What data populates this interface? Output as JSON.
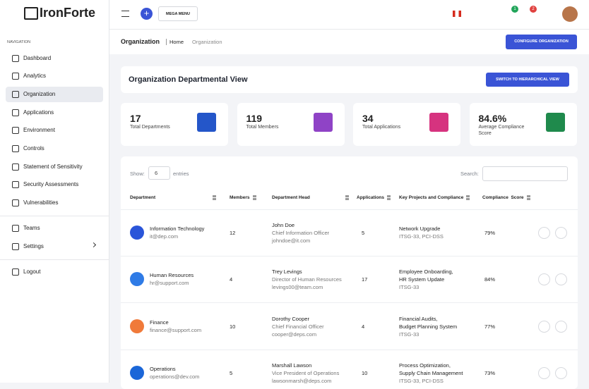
{
  "brand": "IronForte",
  "topbar": {
    "mega_menu": "MEGA MENU",
    "badges": [
      "1",
      "2"
    ]
  },
  "sidebar": {
    "section": "NAVIGATION",
    "items": [
      "Dashboard",
      "Analytics",
      "Organization",
      "Applications",
      "Environment",
      "Controls",
      "Statement of Sensitivity",
      "Security Assessments",
      "Vulnerabilities"
    ],
    "secondary": [
      "Teams",
      "Settings"
    ],
    "logout": "Logout"
  },
  "page_header": {
    "title": "Organization",
    "breadcrumb": [
      "Home",
      "Organization"
    ],
    "button": "CONFIGURE ORGANIZATION"
  },
  "view": {
    "title": "Organization Departmental View",
    "button": "SWITCH TO HIERARCHICAL VIEW"
  },
  "stats": [
    {
      "value": "17",
      "label": "Total Departments"
    },
    {
      "value": "119",
      "label": "Total Members"
    },
    {
      "value": "34",
      "label": "Total Applications"
    },
    {
      "value": "84.6%",
      "label": "Average Compliance Score"
    }
  ],
  "table": {
    "show": "Show:",
    "page_size": "6",
    "entries": "entries",
    "search": "Search:",
    "columns": [
      "Department",
      "Members",
      "Department Head",
      "Applications",
      "Key Projects and Compliance",
      "Compliance  Score"
    ],
    "rows": [
      {
        "name": "Information Technology",
        "email": "it@dep.com",
        "members": "12",
        "head": "John Doe",
        "head_title": "Chief Information Officer",
        "head_email": "johndoe@it.com",
        "applications": "5",
        "projects": [
          "Network Upgrade"
        ],
        "compliance": "ITSG-33, PCI-DSS",
        "score": "79%"
      },
      {
        "name": "Human Resources",
        "email": "hr@support.com",
        "members": "4",
        "head": "Trey Levings",
        "head_title": "Director of Human Resources",
        "head_email": "levings00@team.com",
        "applications": "17",
        "projects": [
          "Employee Onboarding,",
          "HR System Update"
        ],
        "compliance": "ITSG-33",
        "score": "84%"
      },
      {
        "name": "Finance",
        "email": "finance@support.com",
        "members": "10",
        "head": "Dorothy Cooper",
        "head_title": "Chief Financial Officer",
        "head_email": "cooper@deps.com",
        "applications": "4",
        "projects": [
          "Financial Audits,",
          "Budget Planning System"
        ],
        "compliance": "ITSG-33",
        "score": "77%"
      },
      {
        "name": "Operations",
        "email": "operations@dev.com",
        "members": "5",
        "head": "Marshall Lawson",
        "head_title": "Vice President of Operations",
        "head_email": "lawsonmarsh@deps.com",
        "applications": "10",
        "projects": [
          "Process Optimization,",
          "Supply Chain Management"
        ],
        "compliance": "ITSG-33, PCI-DSS",
        "score": "73%"
      }
    ]
  }
}
